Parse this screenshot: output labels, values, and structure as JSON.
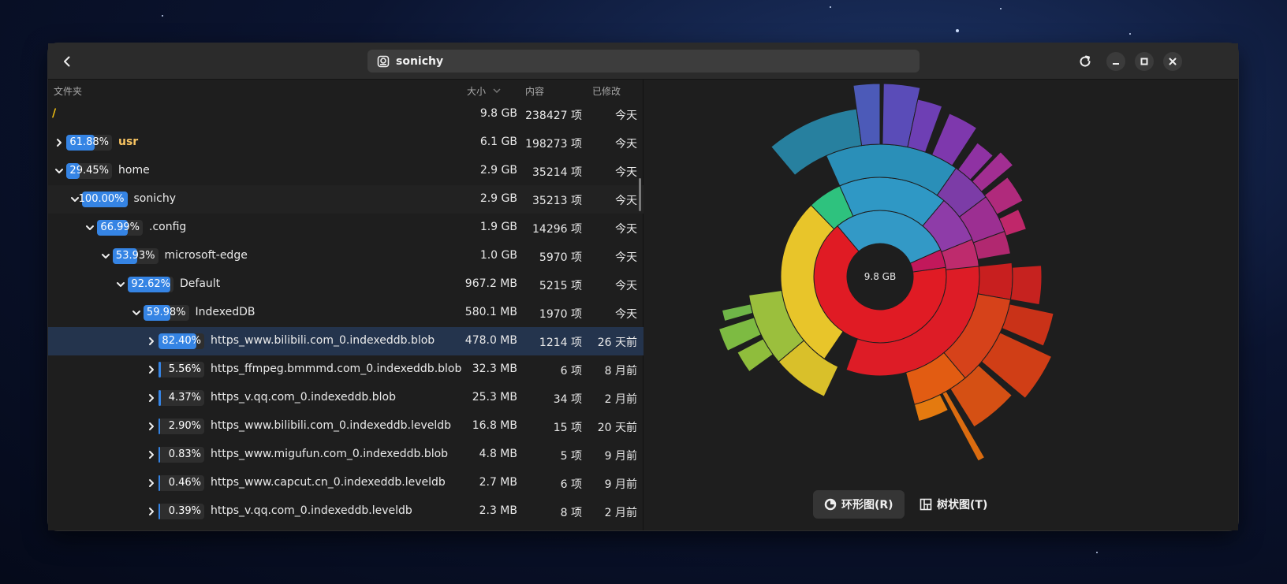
{
  "window": {
    "title": "sonichy"
  },
  "columns": {
    "folder": "文件夹",
    "size": "大小",
    "contents": "内容",
    "modified": "已修改"
  },
  "rows": [
    {
      "name": "/",
      "size": "9.8 GB",
      "items": "238427 项",
      "modified": "今天",
      "percent": "",
      "fill": 0,
      "indent": 0,
      "expander": "none",
      "style": "root"
    },
    {
      "name": "usr",
      "size": "6.1 GB",
      "items": "198273 项",
      "modified": "今天",
      "percent": "61.88%",
      "fill": 0.6188,
      "indent": 0,
      "expander": "collapsed",
      "style": "highlight"
    },
    {
      "name": "home",
      "size": "2.9 GB",
      "items": "35214 项",
      "modified": "今天",
      "percent": "29.45%",
      "fill": 0.2945,
      "indent": 0,
      "expander": "expanded",
      "style": "normal"
    },
    {
      "name": "sonichy",
      "size": "2.9 GB",
      "items": "35213 项",
      "modified": "今天",
      "percent": "100.00%",
      "fill": 1.0,
      "indent": 1,
      "expander": "expanded",
      "style": "normal"
    },
    {
      "name": ".config",
      "size": "1.9 GB",
      "items": "14296 项",
      "modified": "今天",
      "percent": "66.99%",
      "fill": 0.6699,
      "indent": 2,
      "expander": "expanded",
      "style": "normal"
    },
    {
      "name": "microsoft-edge",
      "size": "1.0 GB",
      "items": "5970 项",
      "modified": "今天",
      "percent": "53.93%",
      "fill": 0.5393,
      "indent": 3,
      "expander": "expanded",
      "style": "normal"
    },
    {
      "name": "Default",
      "size": "967.2 MB",
      "items": "5215 项",
      "modified": "今天",
      "percent": "92.62%",
      "fill": 0.9262,
      "indent": 4,
      "expander": "expanded",
      "style": "normal"
    },
    {
      "name": "IndexedDB",
      "size": "580.1 MB",
      "items": "1970 项",
      "modified": "今天",
      "percent": "59.98%",
      "fill": 0.5998,
      "indent": 5,
      "expander": "expanded",
      "style": "normal"
    },
    {
      "name": "https_www.bilibili.com_0.indexeddb.blob",
      "size": "478.0 MB",
      "items": "1214 项",
      "modified": "26 天前",
      "percent": "82.40%",
      "fill": 0.824,
      "indent": 6,
      "expander": "collapsed",
      "style": "selected"
    },
    {
      "name": "https_ffmpeg.bmmmd.com_0.indexeddb.blob",
      "size": "32.3 MB",
      "items": "6 项",
      "modified": "8 月前",
      "percent": "5.56%",
      "fill": 0.0556,
      "indent": 6,
      "expander": "collapsed",
      "style": "normal"
    },
    {
      "name": "https_v.qq.com_0.indexeddb.blob",
      "size": "25.3 MB",
      "items": "34 项",
      "modified": "2 月前",
      "percent": "4.37%",
      "fill": 0.0437,
      "indent": 6,
      "expander": "collapsed",
      "style": "normal"
    },
    {
      "name": "https_www.bilibili.com_0.indexeddb.leveldb",
      "size": "16.8 MB",
      "items": "15 项",
      "modified": "20 天前",
      "percent": "2.90%",
      "fill": 0.029,
      "indent": 6,
      "expander": "collapsed",
      "style": "normal"
    },
    {
      "name": "https_www.migufun.com_0.indexeddb.blob",
      "size": "4.8 MB",
      "items": "5 项",
      "modified": "9 月前",
      "percent": "0.83%",
      "fill": 0.0083,
      "indent": 6,
      "expander": "collapsed",
      "style": "normal"
    },
    {
      "name": "https_www.capcut.cn_0.indexeddb.leveldb",
      "size": "2.7 MB",
      "items": "6 项",
      "modified": "9 月前",
      "percent": "0.46%",
      "fill": 0.0046,
      "indent": 6,
      "expander": "collapsed",
      "style": "normal"
    },
    {
      "name": "https_v.qq.com_0.indexeddb.leveldb",
      "size": "2.3 MB",
      "items": "8 项",
      "modified": "2 月前",
      "percent": "0.39%",
      "fill": 0.0039,
      "indent": 6,
      "expander": "collapsed",
      "style": "normal"
    }
  ],
  "chart": {
    "center_label": "9.8 GB"
  },
  "view_buttons": {
    "ring": "环形图(R)",
    "tree": "树状图(T)"
  },
  "icons": {
    "back": "go-previous-icon",
    "location": "drive-icon",
    "reload": "reload-icon",
    "minimize": "minimize-icon",
    "maximize": "maximize-icon",
    "close": "close-icon",
    "ring_chart": "ring-chart-icon",
    "tree_chart": "treemap-icon",
    "sort": "sort-descending-icon"
  },
  "colors": {
    "accent": "#3584e4",
    "root_label": "#f5c211",
    "highlight_label": "#f8c462"
  }
}
